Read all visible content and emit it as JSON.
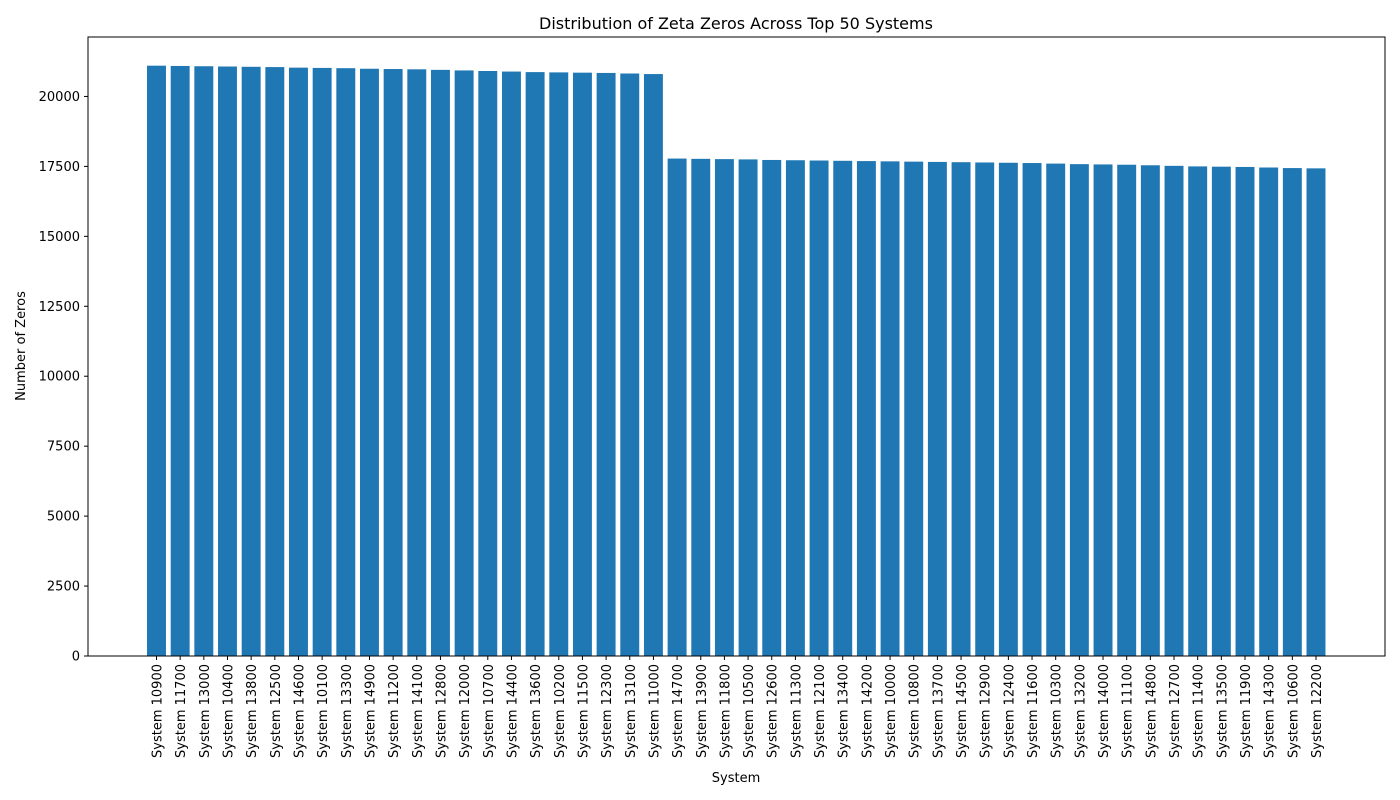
{
  "chart_data": {
    "type": "bar",
    "title": "Distribution of Zeta Zeros Across Top 50 Systems",
    "xlabel": "System",
    "ylabel": "Number of Zeros",
    "ylim": [
      0,
      22125
    ],
    "yticks": [
      0,
      2500,
      5000,
      7500,
      10000,
      12500,
      15000,
      17500,
      20000
    ],
    "grid": false,
    "bar_color": "#1f77b4",
    "categories": [
      "System 10900",
      "System 11700",
      "System 13000",
      "System 10400",
      "System 13800",
      "System 12500",
      "System 14600",
      "System 10100",
      "System 13300",
      "System 14900",
      "System 11200",
      "System 14100",
      "System 12800",
      "System 12000",
      "System 10700",
      "System 14400",
      "System 13600",
      "System 10200",
      "System 11500",
      "System 12300",
      "System 13100",
      "System 11000",
      "System 14700",
      "System 13900",
      "System 11800",
      "System 10500",
      "System 12600",
      "System 11300",
      "System 12100",
      "System 13400",
      "System 14200",
      "System 10000",
      "System 10800",
      "System 13700",
      "System 14500",
      "System 12900",
      "System 12400",
      "System 11600",
      "System 10300",
      "System 13200",
      "System 14000",
      "System 11100",
      "System 14800",
      "System 12700",
      "System 11400",
      "System 13500",
      "System 11900",
      "System 14300",
      "System 10600",
      "System 12200"
    ],
    "values": [
      21100,
      21090,
      21080,
      21070,
      21060,
      21050,
      21030,
      21020,
      21010,
      20990,
      20980,
      20970,
      20950,
      20930,
      20910,
      20890,
      20870,
      20860,
      20850,
      20840,
      20820,
      20800,
      17780,
      17770,
      17760,
      17750,
      17730,
      17720,
      17710,
      17700,
      17690,
      17680,
      17670,
      17660,
      17650,
      17640,
      17630,
      17620,
      17600,
      17580,
      17570,
      17560,
      17540,
      17520,
      17500,
      17490,
      17480,
      17460,
      17440,
      17430
    ]
  }
}
